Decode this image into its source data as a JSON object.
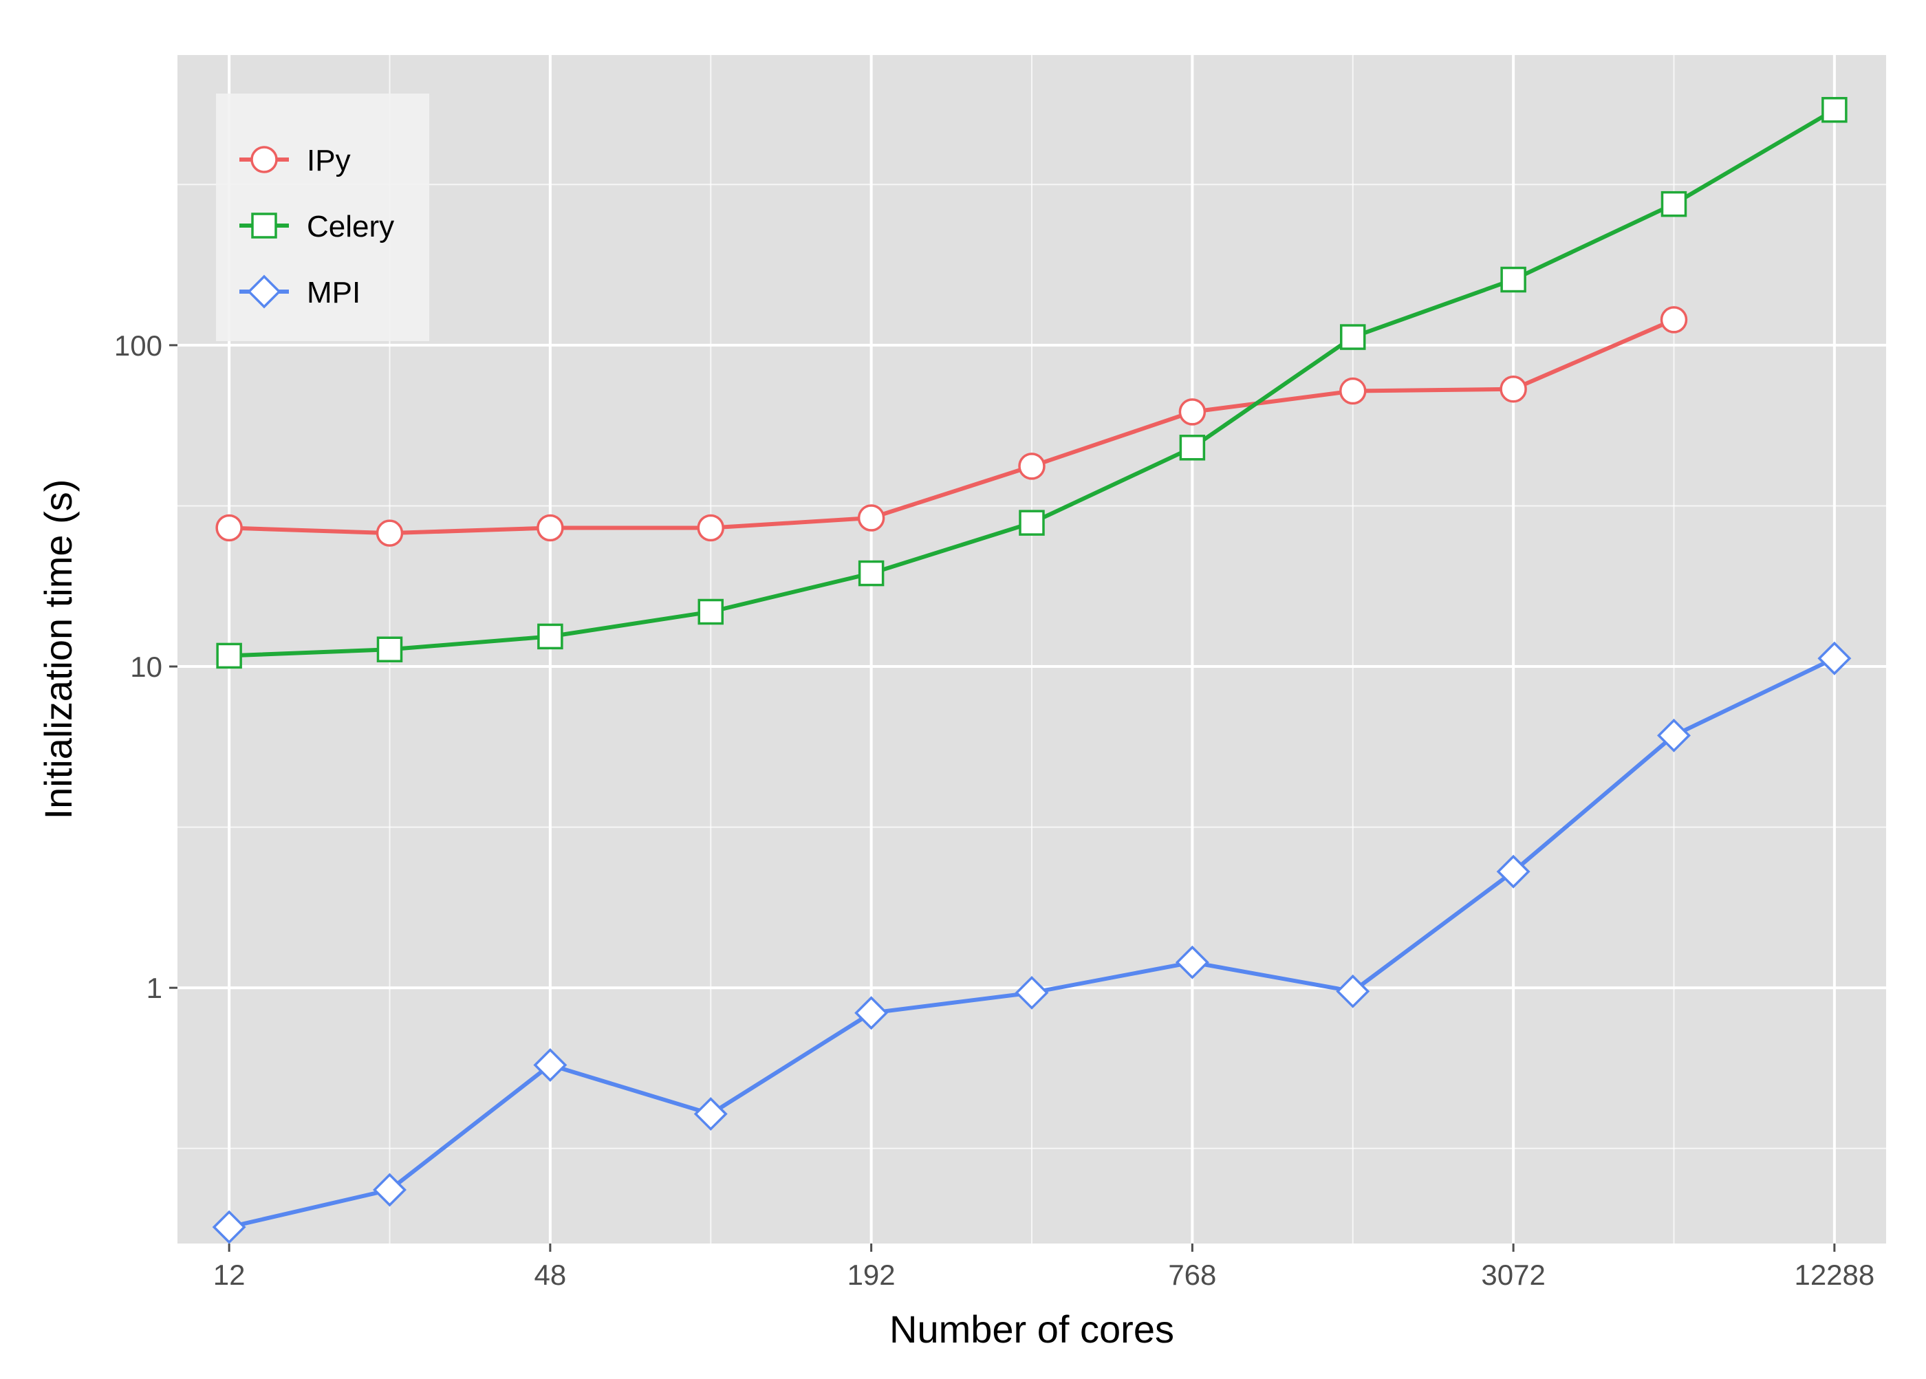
{
  "chart_data": {
    "type": "line",
    "title": "",
    "xlabel": "Number of cores",
    "ylabel": "Initialization time (s)",
    "x_scale": "log2",
    "y_scale": "log10",
    "x_ticks": [
      "12",
      "48",
      "192",
      "768",
      "3072",
      "12288"
    ],
    "y_ticks": [
      "1",
      "10",
      "100"
    ],
    "x": [
      12,
      24,
      48,
      96,
      192,
      384,
      768,
      1536,
      3072,
      6144,
      12288
    ],
    "xlim": [
      9.6,
      15360
    ],
    "ylim": [
      0.16,
      800
    ],
    "grid": true,
    "background": "#E0E0E0",
    "legend": {
      "position": "top-left"
    },
    "series": [
      {
        "name": "IPy",
        "color": "#EE6060",
        "marker": "circle-open",
        "values": [
          27,
          26,
          27,
          27,
          29,
          42,
          62,
          72,
          73,
          120,
          null
        ]
      },
      {
        "name": "Celery",
        "color": "#1FAA38",
        "marker": "square-open",
        "values": [
          10.8,
          11.3,
          12.4,
          14.8,
          19.5,
          28,
          48,
          106,
          160,
          275,
          540
        ]
      },
      {
        "name": "MPI",
        "color": "#5787F0",
        "marker": "diamond-open",
        "values": [
          0.18,
          0.235,
          0.575,
          0.405,
          0.835,
          0.965,
          1.2,
          0.975,
          2.3,
          6.1,
          10.6
        ]
      }
    ]
  }
}
